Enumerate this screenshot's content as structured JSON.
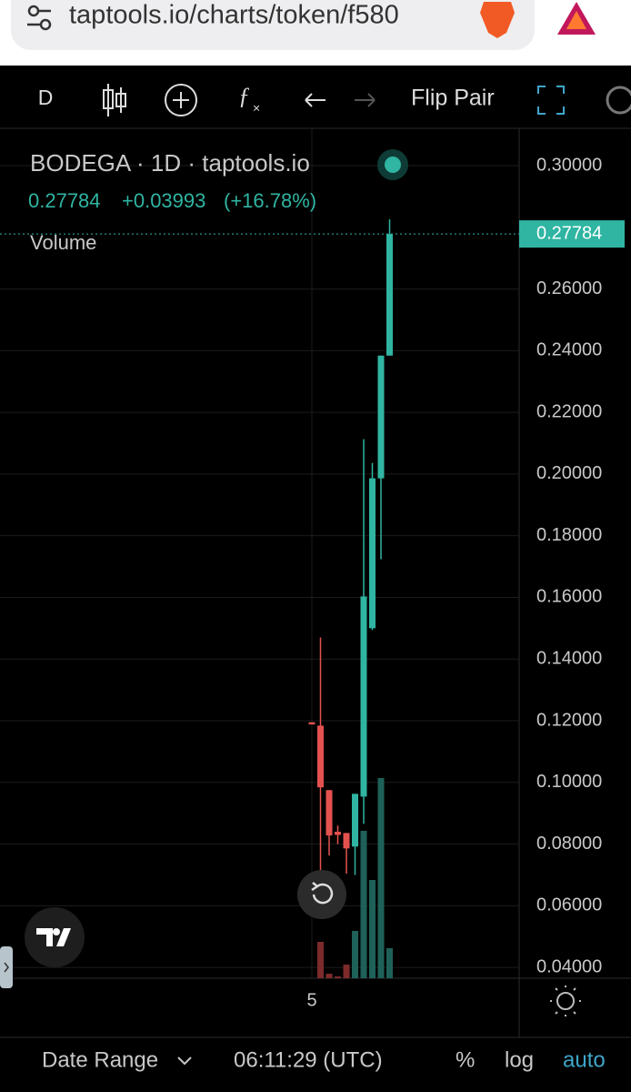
{
  "browser": {
    "url": "taptools.io/charts/token/f580"
  },
  "toolbar": {
    "interval": "D",
    "flip_pair": "Flip Pair"
  },
  "legend": {
    "title": "BODEGA · 1D · taptools.io",
    "change": "+0.03993",
    "change_pct": "(+16.78%)",
    "volume": "Volume"
  },
  "chart_data": {
    "type": "candlestick",
    "categories": [
      "5",
      null,
      null,
      null,
      null,
      null,
      null,
      null,
      null,
      null
    ],
    "open": [
      0.1195,
      0.1184,
      0.0975,
      0.084,
      0.0836,
      0.0792,
      0.0954,
      0.15,
      0.1986,
      0.2384
    ],
    "high": [
      0.1195,
      0.147,
      0.0975,
      0.086,
      0.0836,
      0.0963,
      0.2113,
      0.2036,
      0.2384,
      0.2826
    ],
    "low": [
      0.1188,
      0.0704,
      0.0763,
      0.08,
      0.0704,
      0.07,
      0.0866,
      0.1494,
      0.1724,
      0.2384
    ],
    "close": [
      0.1188,
      0.0984,
      0.0828,
      0.083,
      0.0786,
      0.0963,
      0.1603,
      0.1986,
      0.2384,
      0.2778
    ],
    "volume": [
      0,
      40,
      5,
      2,
      15,
      52,
      162,
      108,
      220,
      33
    ],
    "up_color": "#2fb5a2",
    "down_color": "#e4524f",
    "up_volume_color": "#1e6158",
    "down_volume_color": "#7d2a2b",
    "ylim": [
      0.0365,
      0.3121
    ],
    "yticks": [
      {
        "value": 0.04,
        "label": "0.04000"
      },
      {
        "value": 0.06,
        "label": "0.06000"
      },
      {
        "value": 0.08,
        "label": "0.08000"
      },
      {
        "value": 0.1,
        "label": "0.10000"
      },
      {
        "value": 0.12,
        "label": "0.12000"
      },
      {
        "value": 0.14,
        "label": "0.14000"
      },
      {
        "value": 0.16,
        "label": "0.16000"
      },
      {
        "value": 0.18,
        "label": "0.18000"
      },
      {
        "value": 0.2,
        "label": "0.20000"
      },
      {
        "value": 0.22,
        "label": "0.22000"
      },
      {
        "value": 0.24,
        "label": "0.24000"
      },
      {
        "value": 0.26,
        "label": "0.26000"
      },
      {
        "value": 0.3,
        "label": "0.30000"
      }
    ],
    "last_price": {
      "value": 0.27784,
      "label": "0.27784"
    },
    "grid": true
  },
  "footer": {
    "date_range": "Date Range",
    "time": "06:11:29 (UTC)",
    "percent": "%",
    "log": "log",
    "auto": "auto"
  }
}
